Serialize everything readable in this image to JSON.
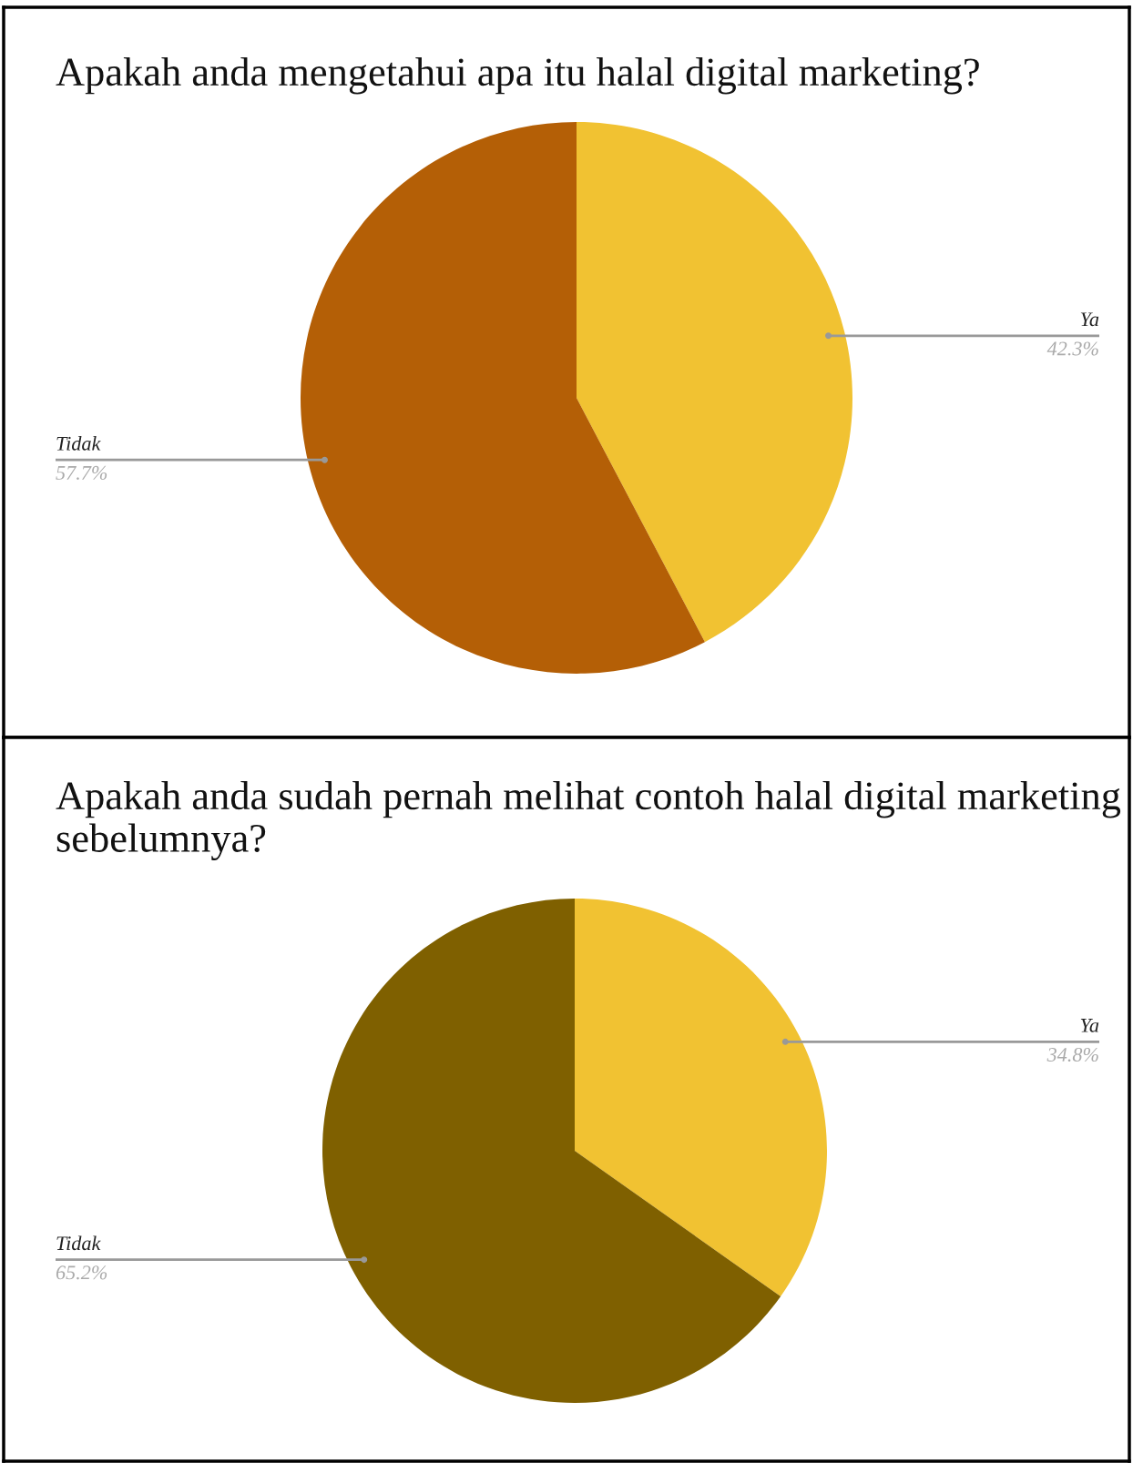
{
  "chart_data": [
    {
      "type": "pie",
      "title": "Apakah anda mengetahui apa itu halal digital marketing?",
      "categories": [
        "Ya",
        "Tidak"
      ],
      "values": [
        42.3,
        57.7
      ],
      "colors": [
        "#f1c232",
        "#b45f06"
      ],
      "value_labels": [
        "42.3%",
        "57.7%"
      ]
    },
    {
      "type": "pie",
      "title": "Apakah anda sudah pernah melihat contoh halal digital marketing sebelumnya?",
      "categories": [
        "Ya",
        "Tidak"
      ],
      "values": [
        34.8,
        65.2
      ],
      "colors": [
        "#f1c232",
        "#7f6000"
      ],
      "value_labels": [
        "34.8%",
        "65.2%"
      ]
    }
  ]
}
